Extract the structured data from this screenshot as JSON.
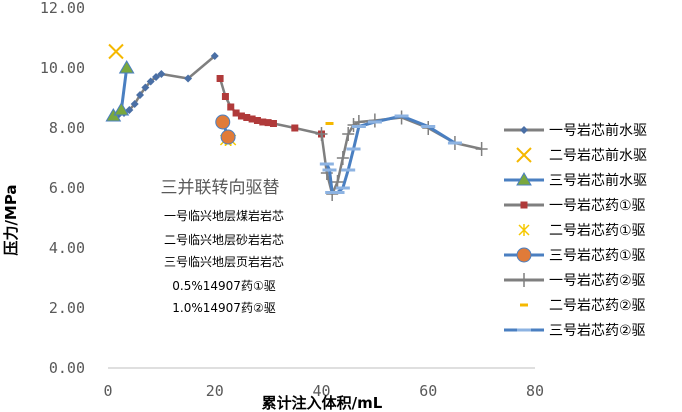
{
  "chart_data": {
    "type": "line",
    "title": "",
    "xlabel": "累计注入体积/mL",
    "ylabel": "压力/MPa",
    "xlim": [
      0,
      80
    ],
    "ylim": [
      0,
      12
    ],
    "x_ticks": [
      "0",
      "20",
      "40",
      "60",
      "80"
    ],
    "y_ticks": [
      "0.00",
      "2.00",
      "4.00",
      "6.00",
      "8.00",
      "10.00",
      "12.00"
    ],
    "grid": false,
    "legend_position": "right",
    "annotation": {
      "title": "三并联转向驱替",
      "lines": [
        "一号临兴地层煤岩岩芯",
        "二号临兴地层砂岩岩芯",
        "三号临兴地层页岩岩芯",
        "0.5%14907药①驱",
        "1.0%14907药②驱"
      ]
    },
    "series": [
      {
        "name": "一号岩芯前水驱",
        "color": "#4a6fa5",
        "marker": "diamond",
        "x": [
          1,
          2,
          3,
          4,
          5,
          6,
          7,
          8,
          9,
          10,
          15,
          20
        ],
        "y": [
          8.4,
          8.45,
          8.5,
          8.6,
          8.8,
          9.1,
          9.35,
          9.55,
          9.7,
          9.8,
          9.65,
          10.4
        ]
      },
      {
        "name": "二号岩芯前水驱",
        "color": "#f5b800",
        "marker": "x",
        "x": [
          1.5
        ],
        "y": [
          10.55
        ]
      },
      {
        "name": "三号岩芯前水驱",
        "color": "#7aa83e",
        "marker": "triangle",
        "x": [
          1,
          2.5,
          3.5
        ],
        "y": [
          8.4,
          8.6,
          10.0
        ]
      },
      {
        "name": "一号岩芯药①驱",
        "color": "#b03a3a",
        "marker": "square",
        "x": [
          21,
          22,
          23,
          24,
          25,
          26,
          27,
          28,
          29,
          30,
          31,
          35,
          40
        ],
        "y": [
          9.65,
          9.05,
          8.7,
          8.5,
          8.4,
          8.35,
          8.3,
          8.25,
          8.2,
          8.18,
          8.15,
          8.0,
          7.8
        ]
      },
      {
        "name": "二号岩芯药①驱",
        "color": "#f5c800",
        "marker": "asterisk",
        "x": [
          22,
          23
        ],
        "y": [
          7.6,
          7.6
        ]
      },
      {
        "name": "三号岩芯药①驱",
        "color": "#e07b39",
        "marker": "circle",
        "x": [
          21.5,
          22.5
        ],
        "y": [
          8.2,
          7.7
        ]
      },
      {
        "name": "一号岩芯药②驱",
        "color": "#7f7f7f",
        "marker": "plus",
        "x": [
          40,
          41,
          42,
          43,
          44,
          45,
          46,
          47,
          50,
          55,
          60,
          65,
          70
        ],
        "y": [
          7.8,
          6.5,
          5.8,
          6.2,
          7.0,
          7.8,
          8.1,
          8.2,
          8.25,
          8.35,
          8.0,
          7.5,
          7.3
        ]
      },
      {
        "name": "二号岩芯药②驱",
        "color": "#f5b800",
        "marker": "dash",
        "x": [
          41.5
        ],
        "y": [
          8.15
        ]
      },
      {
        "name": "三号岩芯药②驱",
        "color": "#4a7fc1",
        "marker": "hbar",
        "x": [
          41,
          41.5,
          42,
          43,
          44,
          45,
          46,
          47,
          50,
          55,
          60,
          65
        ],
        "y": [
          6.8,
          6.6,
          5.85,
          5.85,
          6.0,
          6.6,
          7.3,
          8.05,
          8.2,
          8.4,
          8.05,
          7.5
        ]
      }
    ]
  }
}
